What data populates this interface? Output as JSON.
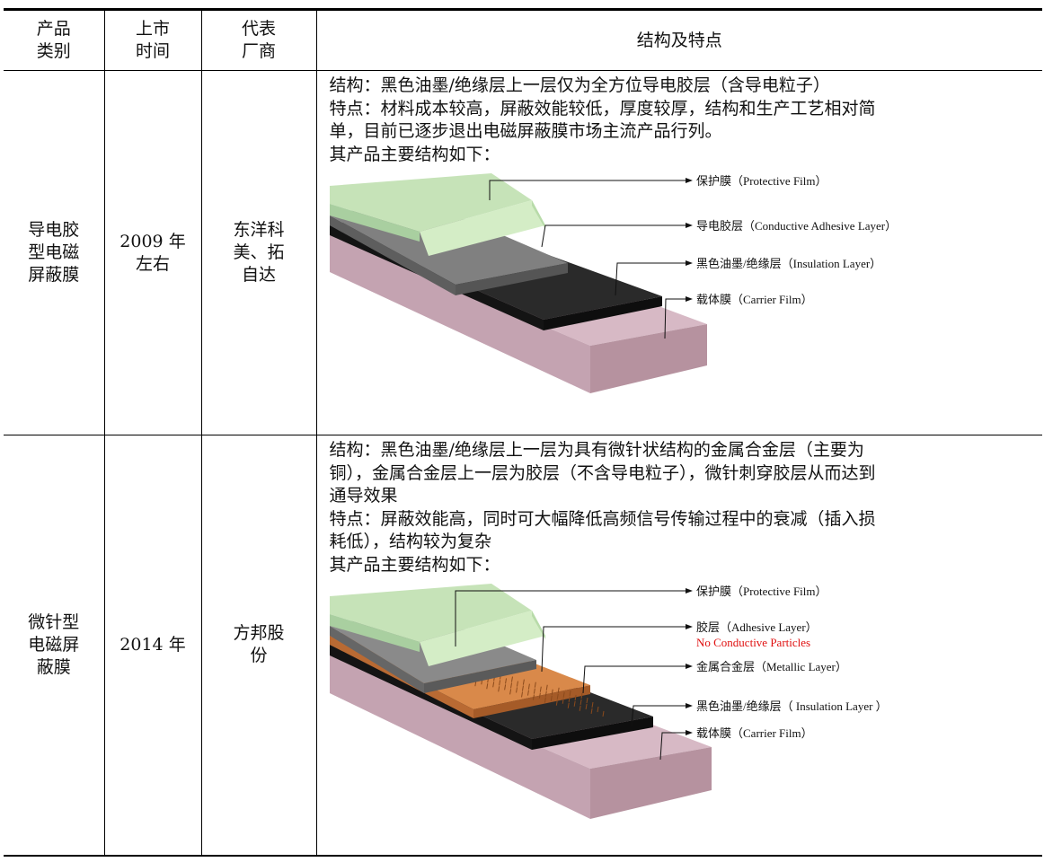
{
  "table": {
    "headers": {
      "category": [
        "产品",
        "类别"
      ],
      "launch": [
        "上市",
        "时间"
      ],
      "vendor": [
        "代表",
        "厂商"
      ],
      "structure": "结构及特点"
    },
    "rows": [
      {
        "category": [
          "导电胶",
          "型电磁",
          "屏蔽膜"
        ],
        "launch": [
          "2009 年",
          "左右"
        ],
        "vendor": [
          "东洋科",
          "美、拓",
          "自达"
        ],
        "lines": [
          "结构：黑色油墨/绝缘层上一层仅为全方位导电胶层（含导电粒子）",
          "特点：材料成本较高，屏蔽效能较低，厚度较厚，结构和生产工艺相对简",
          "单，目前已逐步退出电磁屏蔽膜市场主流产品行列。",
          "其产品主要结构如下："
        ],
        "figure": {
          "protective": "保护膜（Protective Film）",
          "adhesive": "导电胶层（Conductive Adhesive Layer）",
          "insulation": "黑色油墨/绝缘层（Insulation Layer）",
          "carrier": "载体膜（Carrier Film）"
        }
      },
      {
        "category": [
          "微针型",
          "电磁屏",
          "蔽膜"
        ],
        "launch": [
          "2014 年"
        ],
        "vendor": [
          "方邦股",
          "份"
        ],
        "lines": [
          "结构：黑色油墨/绝缘层上一层为具有微针状结构的金属合金层（主要为",
          "铜），金属合金层上一层为胶层（不含导电粒子），微针刺穿胶层从而达到",
          "通导效果",
          "特点：屏蔽效能高，同时可大幅降低高频信号传输过程中的衰减（插入损",
          "耗低），结构较为复杂",
          "其产品主要结构如下："
        ],
        "figure": {
          "protective": "保护膜（Protective Film）",
          "adhesive": "胶层（Adhesive Layer）",
          "note": "No Conductive Particles",
          "metallic": "金属合金层（Metallic Layer）",
          "insulation": "黑色油墨/绝缘层（ Insulation Layer ）",
          "carrier": "载体膜（Carrier Film）"
        }
      }
    ]
  },
  "colors": {
    "protective": "#c6e3b8",
    "conductive": "#7a7a7a",
    "black": "#1e1e1e",
    "carrier": "#d7b9c5",
    "copper": "#d9894a",
    "note": "#e01010"
  }
}
